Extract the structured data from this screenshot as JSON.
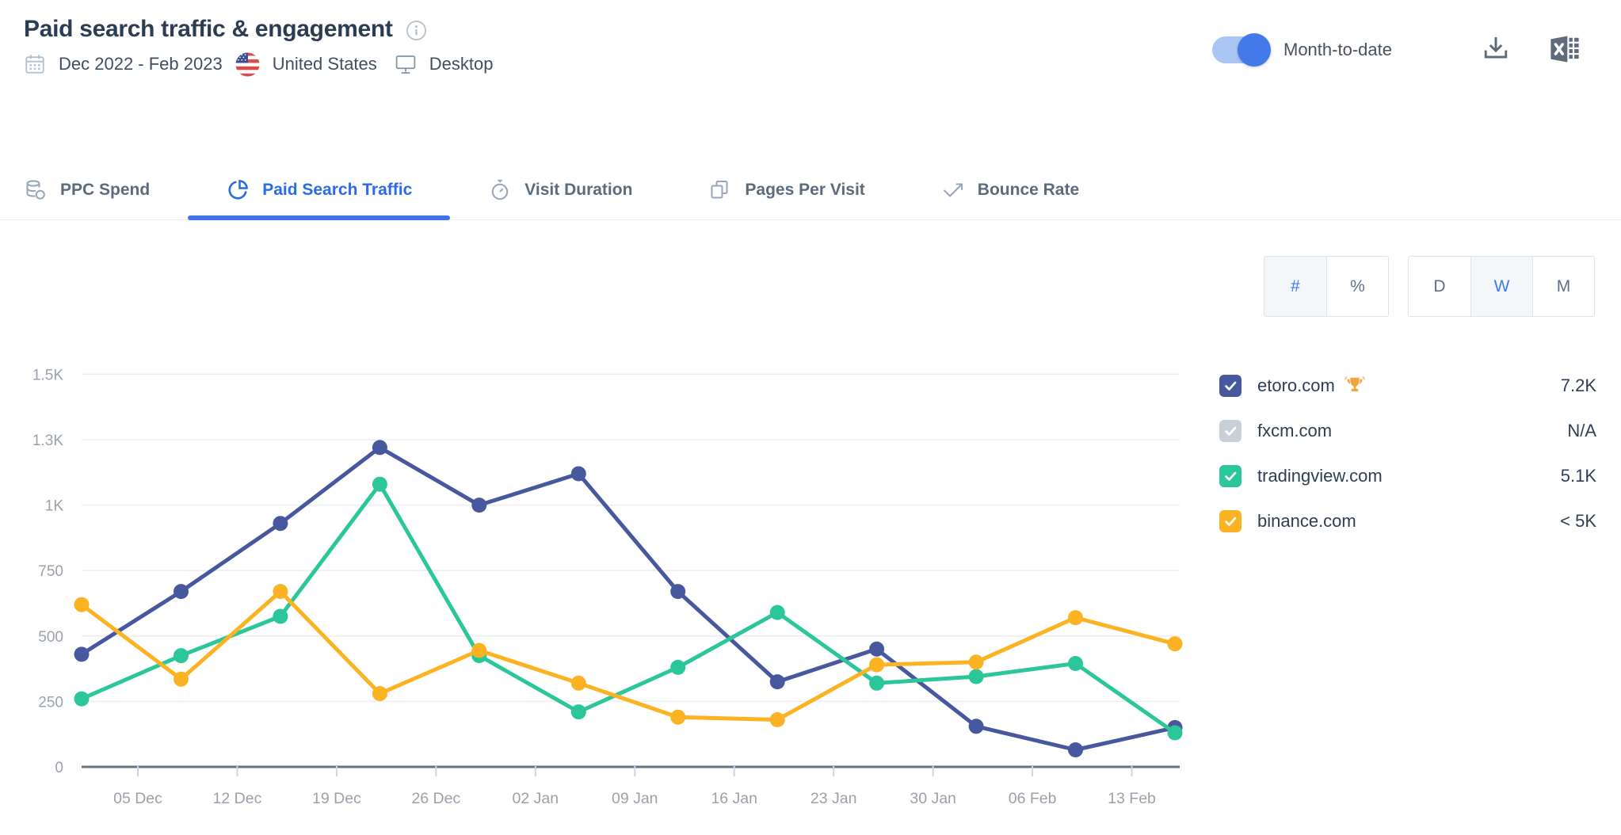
{
  "header": {
    "title": "Paid search traffic & engagement",
    "period": "Dec 2022 - Feb 2023",
    "country": "United States",
    "device": "Desktop",
    "toggle_label": "Month-to-date",
    "toggle_on": true
  },
  "tabs": [
    {
      "label": "PPC Spend",
      "icon": "coins-icon",
      "active": false
    },
    {
      "label": "Paid Search Traffic",
      "icon": "pie-chart-icon",
      "active": true
    },
    {
      "label": "Visit Duration",
      "icon": "stopwatch-icon",
      "active": false
    },
    {
      "label": "Pages Per Visit",
      "icon": "pages-icon",
      "active": false
    },
    {
      "label": "Bounce Rate",
      "icon": "bounce-arrow-icon",
      "active": false
    }
  ],
  "controls": {
    "units": [
      {
        "label": "#",
        "selected": true
      },
      {
        "label": "%",
        "selected": false
      }
    ],
    "granularity": [
      {
        "label": "D",
        "selected": false
      },
      {
        "label": "W",
        "selected": true
      },
      {
        "label": "M",
        "selected": false
      }
    ]
  },
  "legend": [
    {
      "domain": "etoro.com",
      "value": "7.2K",
      "color": "#47589E",
      "checked": true,
      "disabled": false,
      "winner": true
    },
    {
      "domain": "fxcm.com",
      "value": "N/A",
      "color": "#C9CFD7",
      "checked": true,
      "disabled": true,
      "winner": false
    },
    {
      "domain": "tradingview.com",
      "value": "5.1K",
      "color": "#2BC79B",
      "checked": true,
      "disabled": false,
      "winner": false
    },
    {
      "domain": "binance.com",
      "value": "< 5K",
      "color": "#FBB324",
      "checked": true,
      "disabled": false,
      "winner": false
    }
  ],
  "chart_data": {
    "type": "line",
    "title": "Paid search traffic & engagement",
    "x_tick_labels": [
      "05 Dec",
      "12 Dec",
      "19 Dec",
      "26 Dec",
      "02 Jan",
      "09 Jan",
      "16 Jan",
      "23 Jan",
      "30 Jan",
      "06 Feb",
      "13 Feb"
    ],
    "y_tick_labels": [
      "0",
      "250",
      "500",
      "750",
      "1K",
      "1.3K",
      "1.5K"
    ],
    "y_tick_values": [
      0,
      250,
      500,
      750,
      1000,
      1250,
      1500
    ],
    "ylim": [
      0,
      1500
    ],
    "grid": true,
    "legend_position": "right",
    "series": [
      {
        "name": "etoro.com",
        "color": "#47589E",
        "values": [
          430,
          670,
          930,
          1220,
          1000,
          1120,
          670,
          325,
          450,
          155,
          65,
          150
        ]
      },
      {
        "name": "tradingview.com",
        "color": "#2BC79B",
        "values": [
          260,
          425,
          575,
          1080,
          425,
          210,
          380,
          590,
          320,
          345,
          395,
          130
        ]
      },
      {
        "name": "binance.com",
        "color": "#FBB324",
        "values": [
          620,
          335,
          670,
          280,
          445,
          320,
          190,
          180,
          390,
          400,
          570,
          470
        ]
      }
    ]
  }
}
